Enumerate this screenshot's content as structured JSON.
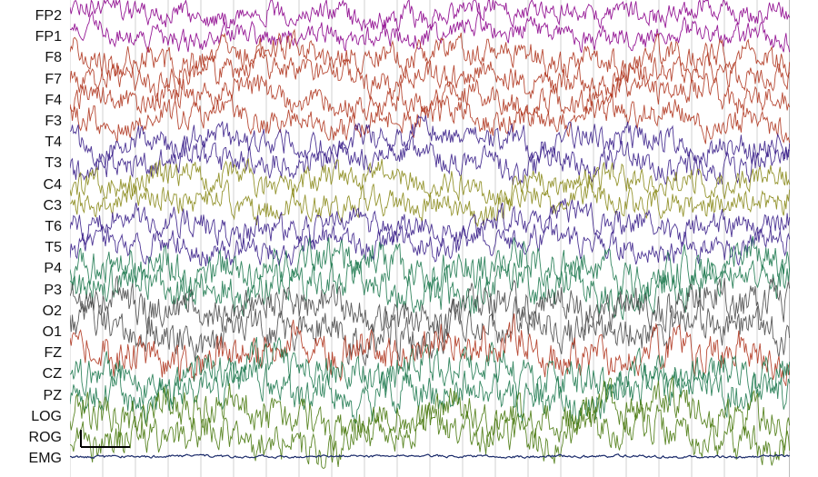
{
  "channels": [
    {
      "name": "FP2",
      "color": "#8b008b"
    },
    {
      "name": "FP1",
      "color": "#8b008b"
    },
    {
      "name": "F8",
      "color": "#b0361f"
    },
    {
      "name": "F7",
      "color": "#b0361f"
    },
    {
      "name": "F4",
      "color": "#b0361f"
    },
    {
      "name": "F3",
      "color": "#b0361f"
    },
    {
      "name": "T4",
      "color": "#3a1f8a"
    },
    {
      "name": "T3",
      "color": "#3a1f8a"
    },
    {
      "name": "C4",
      "color": "#8a8a1a"
    },
    {
      "name": "C3",
      "color": "#8a8a1a"
    },
    {
      "name": "T6",
      "color": "#3a1f8a"
    },
    {
      "name": "T5",
      "color": "#3a1f8a"
    },
    {
      "name": "P4",
      "color": "#1f7a50"
    },
    {
      "name": "P3",
      "color": "#1f7a50"
    },
    {
      "name": "O2",
      "color": "#4a4a4a"
    },
    {
      "name": "O1",
      "color": "#4a4a4a"
    },
    {
      "name": "FZ",
      "color": "#b0361f"
    },
    {
      "name": "CZ",
      "color": "#1f7a50"
    },
    {
      "name": "PZ",
      "color": "#1f7a50"
    },
    {
      "name": "LOG",
      "color": "#4a7a10"
    },
    {
      "name": "ROG",
      "color": "#4a7a10"
    },
    {
      "name": "EMG",
      "color": "#1a2a6a"
    }
  ],
  "colors": {
    "background": "#ffffff",
    "gridline": "#d0d0d0",
    "scale_bar": "#000000"
  }
}
